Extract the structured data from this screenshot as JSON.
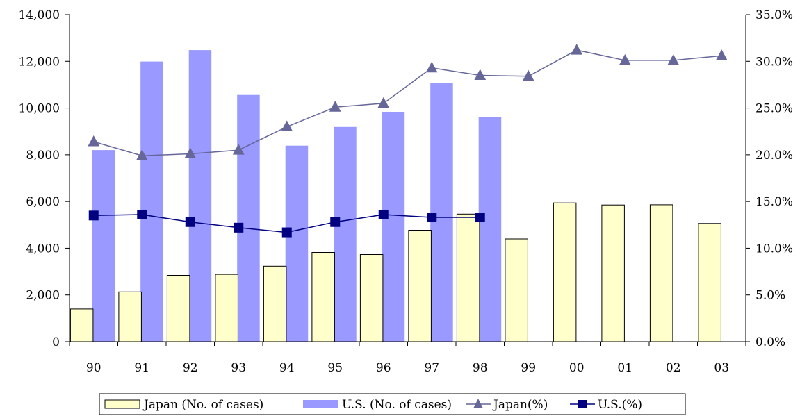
{
  "chart_data": {
    "type": "bar",
    "categories": [
      "90",
      "91",
      "92",
      "93",
      "94",
      "95",
      "96",
      "97",
      "98",
      "99",
      "00",
      "01",
      "02",
      "03"
    ],
    "series": [
      {
        "name": "Japan (No. of cases)",
        "kind": "bar",
        "axis": "left",
        "color": "#ffffcc",
        "values": [
          1400,
          2130,
          2840,
          2880,
          3230,
          3820,
          3730,
          4770,
          5460,
          4400,
          5940,
          5850,
          5860,
          5060
        ]
      },
      {
        "name": "U.S. (No. of cases)",
        "kind": "bar",
        "axis": "left",
        "color": "#9999ff",
        "values": [
          8200,
          11990,
          12480,
          10560,
          8390,
          9190,
          9840,
          11080,
          9620,
          null,
          null,
          null,
          null,
          null
        ]
      },
      {
        "name": "Japan(%)",
        "kind": "line",
        "axis": "right",
        "color": "#666699",
        "marker": "triangle",
        "values": [
          21.4,
          19.9,
          20.1,
          20.5,
          23.0,
          25.1,
          25.5,
          29.3,
          28.5,
          28.4,
          31.2,
          30.1,
          30.1,
          30.6
        ]
      },
      {
        "name": "U.S.(%)",
        "kind": "line",
        "axis": "right",
        "color": "#000080",
        "marker": "square",
        "values": [
          13.5,
          13.6,
          12.8,
          12.2,
          11.7,
          12.8,
          13.6,
          13.3,
          13.3,
          null,
          null,
          null,
          null,
          null
        ]
      }
    ],
    "y_left": {
      "ylim": [
        0,
        14000
      ],
      "ticks": [
        0,
        2000,
        4000,
        6000,
        8000,
        10000,
        12000,
        14000
      ],
      "tick_labels": [
        "0",
        "2,000",
        "4,000",
        "6,000",
        "8,000",
        "10,000",
        "12,000",
        "14,000"
      ]
    },
    "y_right": {
      "ylim": [
        0,
        35
      ],
      "ticks": [
        0,
        5,
        10,
        15,
        20,
        25,
        30,
        35
      ],
      "tick_labels": [
        "0.0%",
        "5.0%",
        "10.0%",
        "15.0%",
        "20.0%",
        "25.0%",
        "30.0%",
        "35.0%"
      ]
    },
    "grid": false,
    "legend_position": "bottom",
    "xlabel": "",
    "ylabel": ""
  }
}
